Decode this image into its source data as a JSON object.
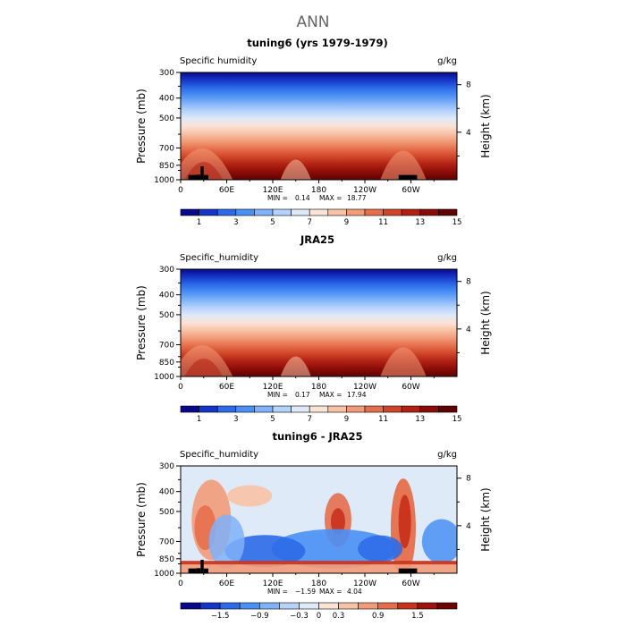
{
  "figure": {
    "title": "ANN",
    "colors": {
      "full_scale": [
        "#08088c",
        "#1535c8",
        "#2c6ae8",
        "#4a90f5",
        "#7fb2f9",
        "#b5d2fb",
        "#dfe9f8",
        "#fbe3d6",
        "#f8c2a6",
        "#f29b78",
        "#e56f4c",
        "#d04529",
        "#b02113",
        "#8a0c07",
        "#5e0202"
      ],
      "diff_scale": [
        "#08088c",
        "#1535c8",
        "#2c6ae8",
        "#4a90f5",
        "#7fb2f9",
        "#b5d2fb",
        "#dfeaf9",
        "#fbe3d6",
        "#f8c2a6",
        "#f29b78",
        "#e56f4c",
        "#c8321e",
        "#9c130a",
        "#6e0303"
      ],
      "topography": "#000000"
    }
  },
  "chart_data": [
    {
      "type": "heatmap",
      "subtype": "zonal-pressure-cross-section",
      "title": "tuning6 (yrs 1979-1979)",
      "field_label": "Specific humidity",
      "units": "g/kg",
      "xlabel": "",
      "ylabel": "Pressure (mb)",
      "ylabel_right": "Height (km)",
      "x_ticks": [
        "0",
        "60E",
        "120E",
        "180",
        "120W",
        "60W"
      ],
      "x_tick_values": [
        0,
        60,
        120,
        180,
        240,
        300
      ],
      "xlim": [
        0,
        360
      ],
      "y_ticks": [
        "300",
        "400",
        "500",
        "700",
        "850",
        "1000"
      ],
      "y_tick_values": [
        300,
        400,
        500,
        700,
        850,
        1000
      ],
      "ylim": [
        300,
        1000
      ],
      "y_scale": "log",
      "right_ticks": [
        "8",
        "4"
      ],
      "right_tick_values": [
        8,
        4
      ],
      "min_label": "MIN =",
      "min_value": "0.14",
      "max_label": "MAX =",
      "max_value": "18.77",
      "colorbar_labels": [
        "1",
        "3",
        "5",
        "7",
        "9",
        "11",
        "13",
        "15"
      ],
      "colorbar_scale": "full_scale",
      "topography": [
        [
          10,
          20,
          948
        ],
        [
          20,
          26,
          945
        ],
        [
          26,
          30,
          860
        ],
        [
          30,
          36,
          948
        ],
        [
          284,
          300,
          948
        ],
        [
          300,
          308,
          948
        ]
      ]
    },
    {
      "type": "heatmap",
      "subtype": "zonal-pressure-cross-section",
      "title": "JRA25",
      "field_label": "Specific_humidity",
      "units": "g/kg",
      "xlabel": "",
      "ylabel": "Pressure (mb)",
      "ylabel_right": "Height (km)",
      "x_ticks": [
        "0",
        "60E",
        "120E",
        "180",
        "120W",
        "60W"
      ],
      "x_tick_values": [
        0,
        60,
        120,
        180,
        240,
        300
      ],
      "xlim": [
        0,
        360
      ],
      "y_ticks": [
        "300",
        "400",
        "500",
        "700",
        "850",
        "1000"
      ],
      "y_tick_values": [
        300,
        400,
        500,
        700,
        850,
        1000
      ],
      "ylim": [
        300,
        1000
      ],
      "y_scale": "log",
      "right_ticks": [
        "8",
        "4"
      ],
      "right_tick_values": [
        8,
        4
      ],
      "min_label": "MIN =",
      "min_value": "0.17",
      "max_label": "MAX =",
      "max_value": "17.94",
      "colorbar_labels": [
        "1",
        "3",
        "5",
        "7",
        "9",
        "11",
        "13",
        "15"
      ],
      "colorbar_scale": "full_scale",
      "topography": []
    },
    {
      "type": "heatmap",
      "subtype": "zonal-pressure-cross-section",
      "title": "tuning6 - JRA25",
      "field_label": "Specific_humidity",
      "units": "g/kg",
      "xlabel": "",
      "ylabel": "Pressure (mb)",
      "ylabel_right": "Height (km)",
      "x_ticks": [
        "0",
        "60E",
        "120E",
        "180",
        "120W",
        "60W"
      ],
      "x_tick_values": [
        0,
        60,
        120,
        180,
        240,
        300
      ],
      "xlim": [
        0,
        360
      ],
      "y_ticks": [
        "300",
        "400",
        "500",
        "700",
        "850",
        "1000"
      ],
      "y_tick_values": [
        300,
        400,
        500,
        700,
        850,
        1000
      ],
      "ylim": [
        300,
        1000
      ],
      "y_scale": "log",
      "right_ticks": [
        "8",
        "4"
      ],
      "right_tick_values": [
        8,
        4
      ],
      "min_label": "MIN =",
      "min_value": "−1.59",
      "max_label": "MAX =",
      "max_value": "4.04",
      "colorbar_labels": [
        "−1.5",
        "−0.9",
        "−0.3",
        "0",
        "0.3",
        "0.9",
        "1.5"
      ],
      "colorbar_scale": "diff_scale",
      "topography": [
        [
          10,
          20,
          948
        ],
        [
          20,
          26,
          945
        ],
        [
          26,
          30,
          860
        ],
        [
          30,
          36,
          948
        ],
        [
          284,
          300,
          948
        ],
        [
          300,
          308,
          948
        ]
      ]
    }
  ]
}
